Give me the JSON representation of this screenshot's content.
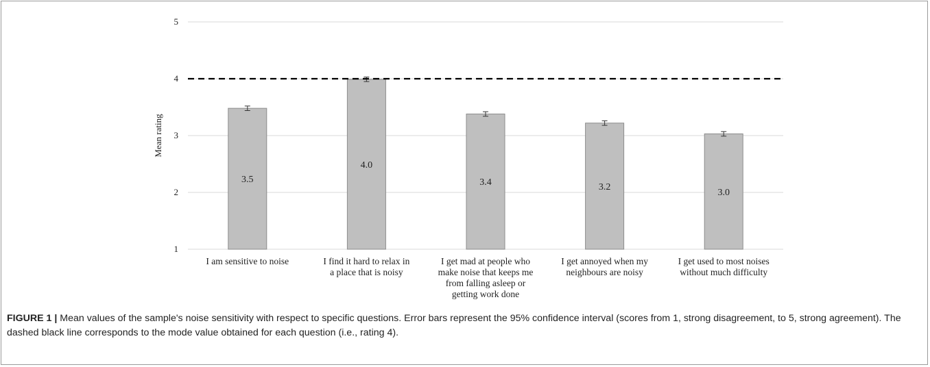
{
  "chart_data": {
    "type": "bar",
    "categories": [
      [
        "I am sensitive to noise"
      ],
      [
        "I find it hard to relax in",
        "a place that is noisy"
      ],
      [
        "I get mad at people who",
        "make noise that keeps me",
        "from falling asleep or",
        "getting work done"
      ],
      [
        "I get annoyed when my",
        "neighbours are noisy"
      ],
      [
        "I get used to most noises",
        "without much difficulty"
      ]
    ],
    "values": [
      3.48,
      3.99,
      3.38,
      3.22,
      3.03
    ],
    "data_labels": [
      "3.5",
      "4.0",
      "3.4",
      "3.2",
      "3.0"
    ],
    "error": [
      0.04,
      0.04,
      0.04,
      0.04,
      0.04
    ],
    "ylabel": "Mean rating",
    "ylim": [
      1,
      5
    ],
    "yticks": [
      "1",
      "2",
      "3",
      "4",
      "5"
    ],
    "reference_line": 4,
    "grid": true,
    "colors": {
      "bar_fill": "#bfbfbf",
      "bar_stroke": "#8c8c8c",
      "grid": "#d9d9d9",
      "reference_line": "#000000"
    }
  },
  "caption": {
    "label": "FIGURE 1 |",
    "text": " Mean values of the sample's noise sensitivity with respect to specific questions. Error bars represent the 95% confidence interval (scores from 1, strong disagreement, to 5, strong agreement). The dashed black line corresponds to the mode value obtained for each question (i.e., rating 4)."
  }
}
